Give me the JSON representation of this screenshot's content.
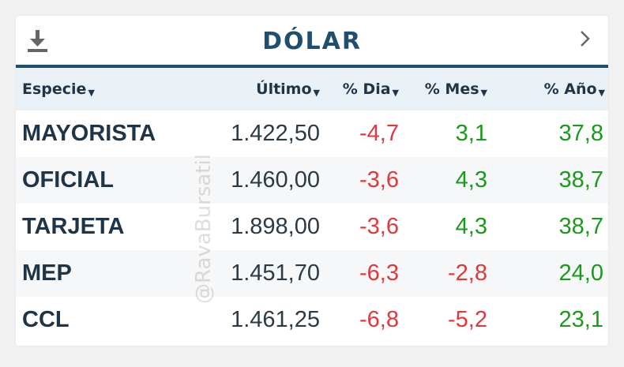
{
  "header": {
    "title": "DÓLAR",
    "download_icon": "download-icon",
    "next_icon": "chevron-right-icon"
  },
  "table": {
    "columns": [
      {
        "label": "Especie",
        "sort_icon": "caret-down-icon"
      },
      {
        "label": "Último",
        "sort_icon": "caret-down-icon"
      },
      {
        "label": "% Dia",
        "sort_icon": "caret-down-icon"
      },
      {
        "label": "% Mes",
        "sort_icon": "caret-down-icon"
      },
      {
        "label": "% Año",
        "sort_icon": "caret-down-icon"
      }
    ],
    "rows": [
      {
        "especie": "MAYORISTA",
        "ultimo": "1.422,50",
        "dia": "-4,7",
        "mes": "3,1",
        "anio": "37,8"
      },
      {
        "especie": "OFICIAL",
        "ultimo": "1.460,00",
        "dia": "-3,6",
        "mes": "4,3",
        "anio": "38,7"
      },
      {
        "especie": "TARJETA",
        "ultimo": "1.898,00",
        "dia": "-3,6",
        "mes": "4,3",
        "anio": "38,7"
      },
      {
        "especie": "MEP",
        "ultimo": "1.451,70",
        "dia": "-6,3",
        "mes": "-2,8",
        "anio": "24,0"
      },
      {
        "especie": "CCL",
        "ultimo": "1.461,25",
        "dia": "-6,8",
        "mes": "-5,2",
        "anio": "23,1"
      }
    ]
  },
  "watermark": "@RavaBursatil",
  "colors": {
    "accent": "#1f4e6e",
    "negative": "#e0393b",
    "positive": "#1a9a1a",
    "header_row_bg": "#e9f0f6"
  }
}
